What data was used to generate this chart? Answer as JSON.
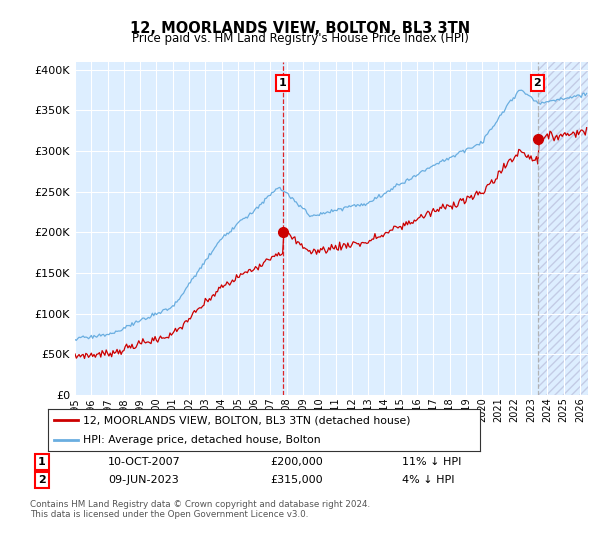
{
  "title": "12, MOORLANDS VIEW, BOLTON, BL3 3TN",
  "subtitle": "Price paid vs. HM Land Registry's House Price Index (HPI)",
  "hpi_label": "HPI: Average price, detached house, Bolton",
  "price_label": "12, MOORLANDS VIEW, BOLTON, BL3 3TN (detached house)",
  "footnote": "Contains HM Land Registry data © Crown copyright and database right 2024.\nThis data is licensed under the Open Government Licence v3.0.",
  "sale1_date": "10-OCT-2007",
  "sale1_price": 200000,
  "sale1_note": "11% ↓ HPI",
  "sale1_x": 2007.78,
  "sale2_date": "09-JUN-2023",
  "sale2_price": 315000,
  "sale2_note": "4% ↓ HPI",
  "sale2_x": 2023.44,
  "ylim": [
    0,
    410000
  ],
  "xlim": [
    1995.0,
    2026.5
  ],
  "bg_color": "#ddeeff",
  "hpi_color": "#6aaee0",
  "price_color": "#cc0000",
  "vline1_color": "#dd0000",
  "vline2_color": "#aaaaaa",
  "marker_color": "#cc0000",
  "yticks": [
    0,
    50000,
    100000,
    150000,
    200000,
    250000,
    300000,
    350000,
    400000
  ]
}
